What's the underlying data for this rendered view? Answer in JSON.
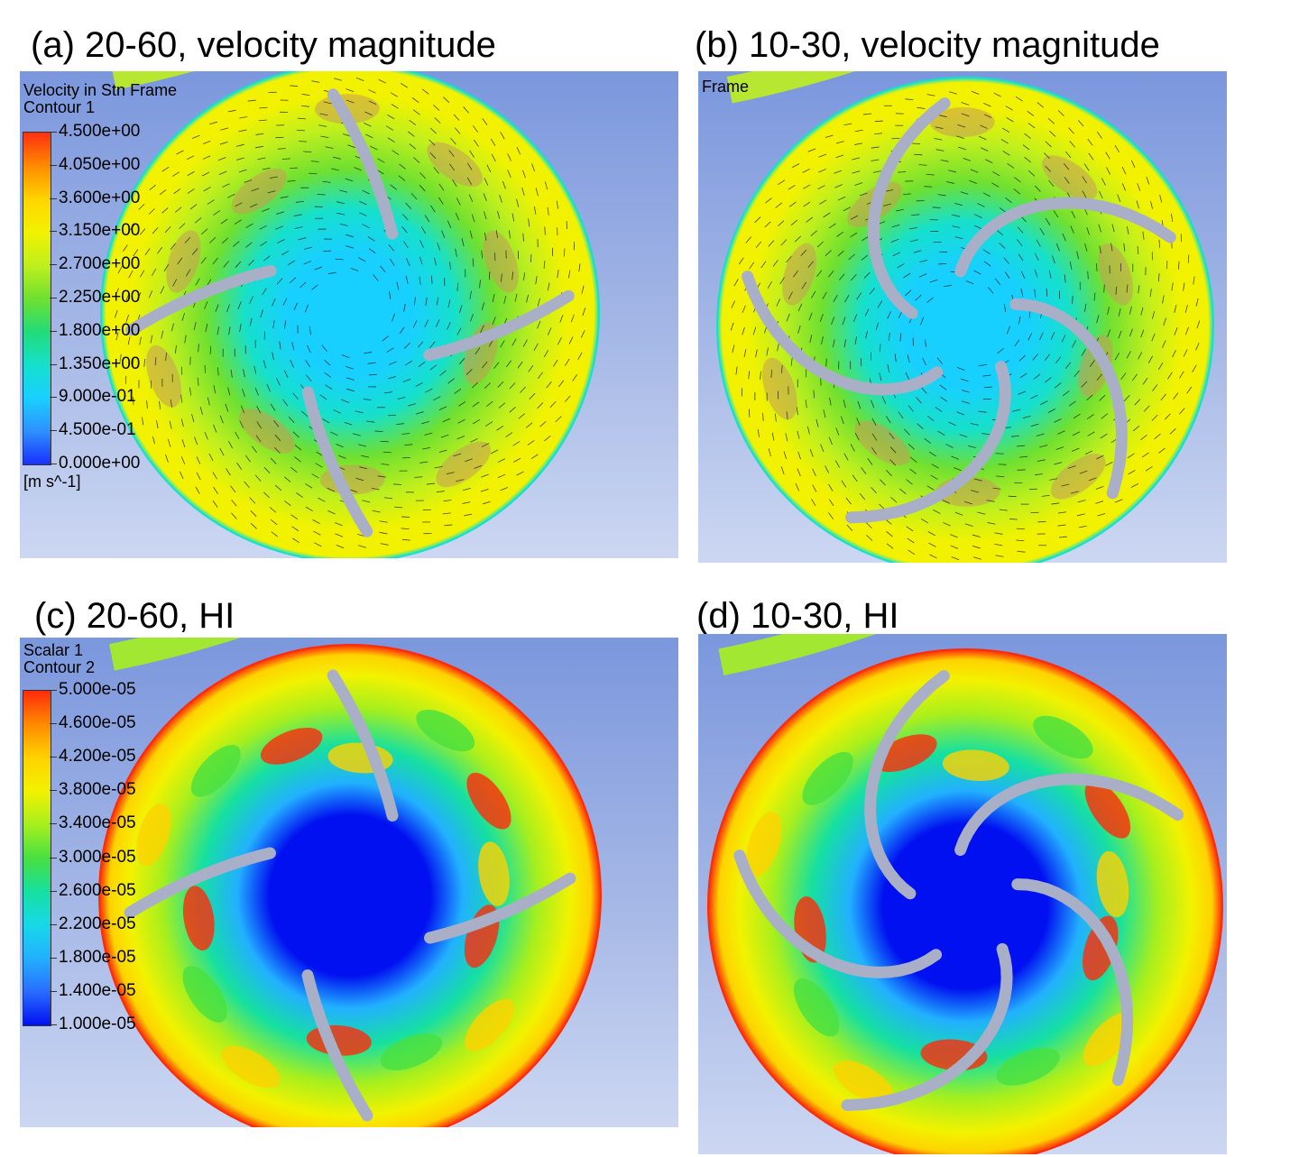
{
  "panels": [
    {
      "id": "a",
      "title": "(a) 20-60, velocity magnitude",
      "legend_title": "Velocity in Stn Frame",
      "legend_subtitle": "Contour 1",
      "variant": "velocity",
      "blades": "4-straight"
    },
    {
      "id": "b",
      "title": "(b) 10-30, velocity magnitude",
      "legend_title": "Frame",
      "variant": "velocity",
      "blades": "5-curved"
    },
    {
      "id": "c",
      "title": "(c) 20-60, HI",
      "legend_title": "Scalar 1",
      "legend_subtitle": "Contour 2",
      "variant": "hi",
      "blades": "4-straight"
    },
    {
      "id": "d",
      "title": "(d) 10-30, HI",
      "variant": "hi",
      "blades": "5-curved"
    }
  ],
  "velocity_legend": {
    "ticks": [
      "4.500e+00",
      "4.050e+00",
      "3.600e+00",
      "3.150e+00",
      "2.700e+00",
      "2.250e+00",
      "1.800e+00",
      "1.350e+00",
      "9.000e-01",
      "4.500e-01",
      "0.000e+00"
    ],
    "unit": "[m s^-1]",
    "colors": [
      "#ff3010",
      "#ff8a00",
      "#ffd400",
      "#f2f200",
      "#bfef1e",
      "#6fe030",
      "#22dc78",
      "#16e0cc",
      "#18d0ff",
      "#2e90ff",
      "#1830ff"
    ]
  },
  "hi_legend": {
    "ticks": [
      "5.000e-05",
      "4.600e-05",
      "4.200e-05",
      "3.800e-05",
      "3.400e-05",
      "3.000e-05",
      "2.600e-05",
      "2.200e-05",
      "1.800e-05",
      "1.400e-05",
      "1.000e-05"
    ],
    "colors": [
      "#ff2a0a",
      "#ff8a00",
      "#ffd200",
      "#f2f200",
      "#a6ef1e",
      "#48e040",
      "#16e0a0",
      "#18d8e8",
      "#22b0ff",
      "#2a6cff",
      "#0010f0"
    ]
  },
  "colors": {
    "blade": "#a9afc7",
    "hub_velocity": "#36c8f0",
    "hub_hi": "#0010e8"
  }
}
